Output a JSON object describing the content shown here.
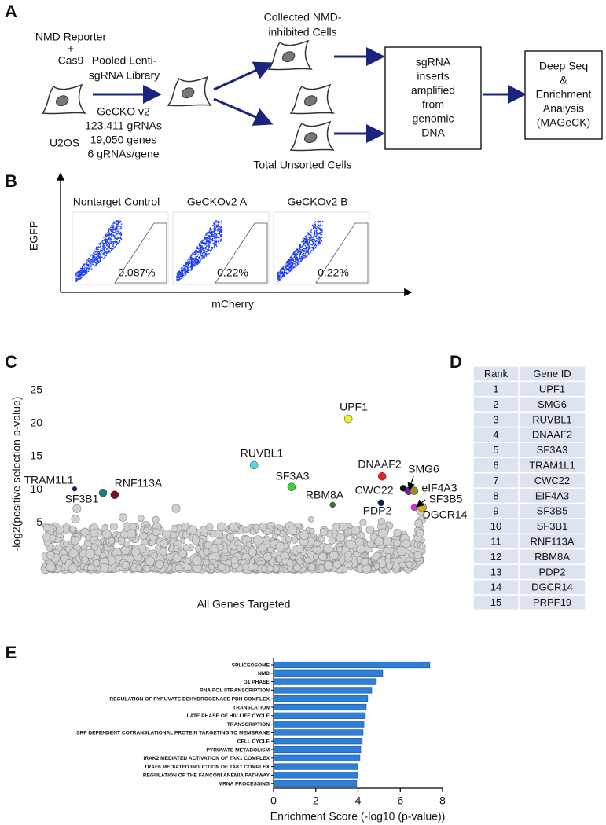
{
  "panel_labels": [
    "A",
    "B",
    "C",
    "D",
    "E"
  ],
  "panel_a": {
    "reporter_lines": [
      "NMD Reporter",
      "+",
      "Cas9"
    ],
    "cell_line": "U2OS",
    "library_lines": [
      "Pooled Lenti-",
      "sgRNA Library"
    ],
    "library_details": [
      "GeCKO v2",
      "123,411 gRNAs",
      "19,050 genes",
      "6 gRNAs/gene"
    ],
    "sorted_lines": [
      "Collected NMD-",
      "inhibited Cells"
    ],
    "unsorted": "Total Unsorted Cells",
    "amplify_box": [
      "sgRNA",
      "inserts",
      "amplified",
      "from",
      "genomic",
      "DNA"
    ],
    "analysis_box": [
      "Deep Seq",
      "&",
      "Enrichment",
      "Analysis",
      "(MAGeCK)"
    ]
  },
  "panel_b": {
    "y_label": "EGFP",
    "x_label": "mCherry",
    "plots": [
      {
        "title": "Nontarget Control",
        "gate_percent": "0.087%"
      },
      {
        "title": "GeCKOv2 A",
        "gate_percent": "0.22%"
      },
      {
        "title": "GeCKOv2 B",
        "gate_percent": "0.22%"
      }
    ]
  },
  "panel_d": {
    "header": [
      "Rank",
      "Gene ID"
    ],
    "rows": [
      [
        "1",
        "UPF1"
      ],
      [
        "2",
        "SMG6"
      ],
      [
        "3",
        "RUVBL1"
      ],
      [
        "4",
        "DNAAF2"
      ],
      [
        "5",
        "SF3A3"
      ],
      [
        "6",
        "TRAM1L1"
      ],
      [
        "7",
        "CWC22"
      ],
      [
        "8",
        "EIF4A3"
      ],
      [
        "9",
        "SF3B5"
      ],
      [
        "10",
        "SF3B1"
      ],
      [
        "11",
        "RNF113A"
      ],
      [
        "12",
        "RBM8A"
      ],
      [
        "13",
        "PDP2"
      ],
      [
        "14",
        "DGCR14"
      ],
      [
        "15",
        "PRPF19"
      ]
    ]
  },
  "chart_data": [
    {
      "type": "scatter",
      "ylabel": "-log2(positive selection p-value)",
      "xlabel": "All Genes Targeted",
      "labels": [
        "TRAM1L1",
        "SF3B1",
        "RNF113A",
        "RUVBL1",
        "SF3A3",
        "RBM8A",
        "UPF1",
        "DNAAF2",
        "PDP2",
        "CWC22",
        "SMG6",
        "eIF4A3",
        "SF3B5",
        "DGCR14"
      ],
      "x": [
        2.8,
        10.6,
        13.8,
        52.1,
        62.4,
        73.7,
        78.0,
        87.3,
        87.0,
        93.1,
        94.6,
        96.1,
        96.1,
        98.3
      ],
      "values": [
        10.1,
        9.5,
        9.2,
        13.7,
        10.4,
        7.7,
        20.7,
        12.0,
        8.0,
        10.2,
        9.8,
        9.8,
        7.3,
        7.3
      ],
      "colors": [
        "#1a237e",
        "#1b7f7a",
        "#7a1020",
        "#4dd9e8",
        "#39d13c",
        "#2e7d32",
        "#f2ef2e",
        "#e52222",
        "#0d1a5c",
        "#111111",
        "#7b1fa2",
        "#9a8f22",
        "#d62fd6",
        "#c7b21e"
      ],
      "xlim": [
        0,
        100
      ],
      "ylim": [
        -3.3,
        26.4
      ],
      "yticks": [
        5,
        10,
        15,
        20,
        25
      ]
    },
    {
      "type": "bar",
      "orientation": "horizontal",
      "categories": [
        "SPLICEOSOME",
        "NMD",
        "G1 PHASE",
        "RNA POL IITRANSCRIPTION",
        "REGULATION OF PYRUVATE DEHYDROGENASE PDH COMPLEX",
        "TRANSLATION",
        "LATE PHASE OF HIV LIFE CYCLE",
        "TRANSCRIPTION",
        "SRP DEPENDENT COTRANSLATIONAL PROTEIN TARGETING TO MEMBRANE",
        "CELL CYCLE",
        "PYRUVATE METABOLISM",
        "IRAK2 MEDIATED ACTIVATION OF TAK1 COMPLEX",
        "TRAF6 MEDIATED INDUCTION OF TAK1 COMPLEX",
        "REGULATION OF THE FANCONI ANEMIA PATHWAY",
        "MRNA PROCESSING"
      ],
      "values": [
        7.4,
        5.17,
        4.87,
        4.65,
        4.46,
        4.39,
        4.35,
        4.28,
        4.24,
        4.2,
        4.13,
        4.09,
        3.98,
        3.98,
        3.94
      ],
      "color": "#2e7fd8",
      "xlabel": "Enrichment Score (-log10 (p-value))",
      "xlim": [
        0,
        8
      ],
      "xticks": [
        0,
        2,
        4,
        6,
        8
      ]
    }
  ]
}
